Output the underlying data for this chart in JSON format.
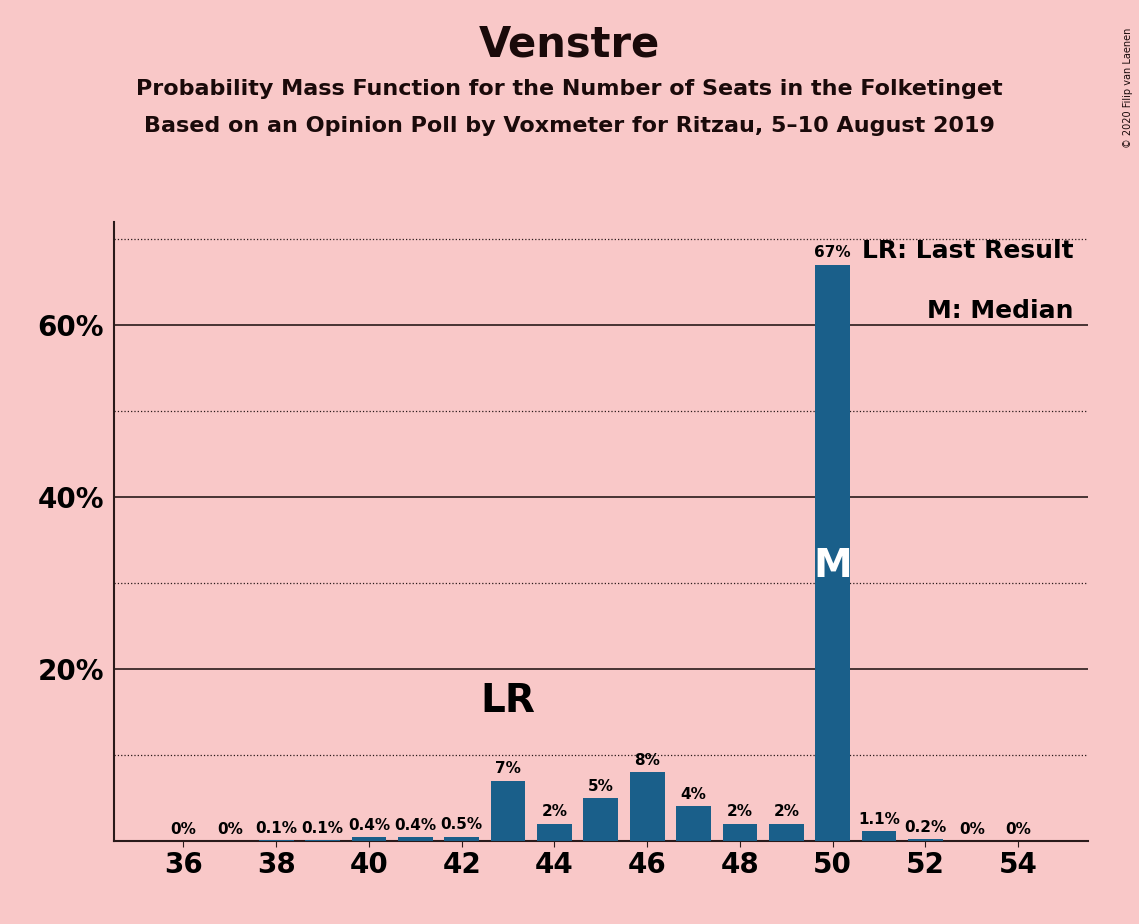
{
  "title": "Venstre",
  "subtitle1": "Probability Mass Function for the Number of Seats in the Folketinget",
  "subtitle2": "Based on an Opinion Poll by Voxmeter for Ritzau, 5–10 August 2019",
  "copyright": "© 2020 Filip van Laenen",
  "seats": [
    36,
    37,
    38,
    39,
    40,
    41,
    42,
    43,
    44,
    45,
    46,
    47,
    48,
    49,
    50,
    51,
    52,
    53,
    54
  ],
  "probs": [
    0.0,
    0.0,
    0.1,
    0.1,
    0.4,
    0.4,
    0.5,
    7.0,
    2.0,
    5.0,
    8.0,
    4.0,
    2.0,
    2.0,
    67.0,
    1.1,
    0.2,
    0.0,
    0.0
  ],
  "labels": [
    "0%",
    "0%",
    "0.1%",
    "0.1%",
    "0.4%",
    "0.4%",
    "0.5%",
    "7%",
    "2%",
    "5%",
    "8%",
    "4%",
    "2%",
    "2%",
    "67%",
    "1.1%",
    "0.2%",
    "0%",
    "0%"
  ],
  "bar_color": "#1a5f8a",
  "background_color": "#f9c8c8",
  "lr_seat": 43,
  "median_seat": 50,
  "legend_lr": "LR: Last Result",
  "legend_m": "M: Median",
  "ylim_max": 72,
  "solid_yticks": [
    20,
    40,
    60
  ],
  "dotted_yticks": [
    10,
    30,
    50,
    70
  ],
  "xticks": [
    36,
    38,
    40,
    42,
    44,
    46,
    48,
    50,
    52,
    54
  ],
  "title_fontsize": 30,
  "subtitle_fontsize": 16,
  "tick_fontsize": 20,
  "label_fontsize": 11,
  "legend_fontsize": 18
}
